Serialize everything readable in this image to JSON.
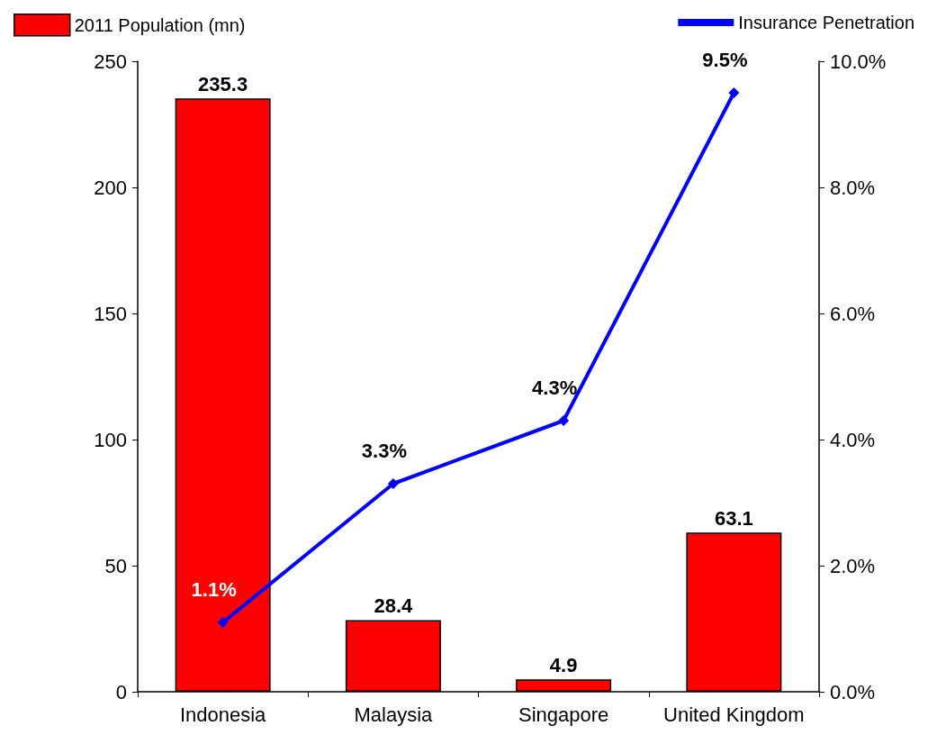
{
  "chart_data": {
    "type": "bar",
    "categories": [
      "Indonesia",
      "Malaysia",
      "Singapore",
      "United Kingdom"
    ],
    "series": [
      {
        "name": "2011 Population (mn)",
        "color": "#ff0000",
        "values": [
          235.3,
          28.4,
          4.9,
          63.1
        ],
        "value_labels": [
          "235.3",
          "28.4",
          "4.9",
          "63.1"
        ]
      },
      {
        "name": "Insurance Penetration",
        "type": "line",
        "axis": "y2",
        "color": "#0000ff",
        "values": [
          1.1,
          3.3,
          4.3,
          9.5
        ],
        "value_labels": [
          "1.1%",
          "3.3%",
          "4.3%",
          "9.5%"
        ]
      }
    ],
    "ylim": [
      0,
      250
    ],
    "yticks": [
      0,
      50,
      100,
      150,
      200,
      250
    ],
    "y2lim": [
      0,
      10
    ],
    "y2ticks": [
      {
        "value": 0,
        "label": "0.0%"
      },
      {
        "value": 2,
        "label": "2.0%"
      },
      {
        "value": 4,
        "label": "4.0%"
      },
      {
        "value": 6,
        "label": "6.0%"
      },
      {
        "value": 8,
        "label": "8.0%"
      },
      {
        "value": 10,
        "label": "10.0%"
      }
    ],
    "legend": "top",
    "marker": "diamond",
    "grid": false
  }
}
